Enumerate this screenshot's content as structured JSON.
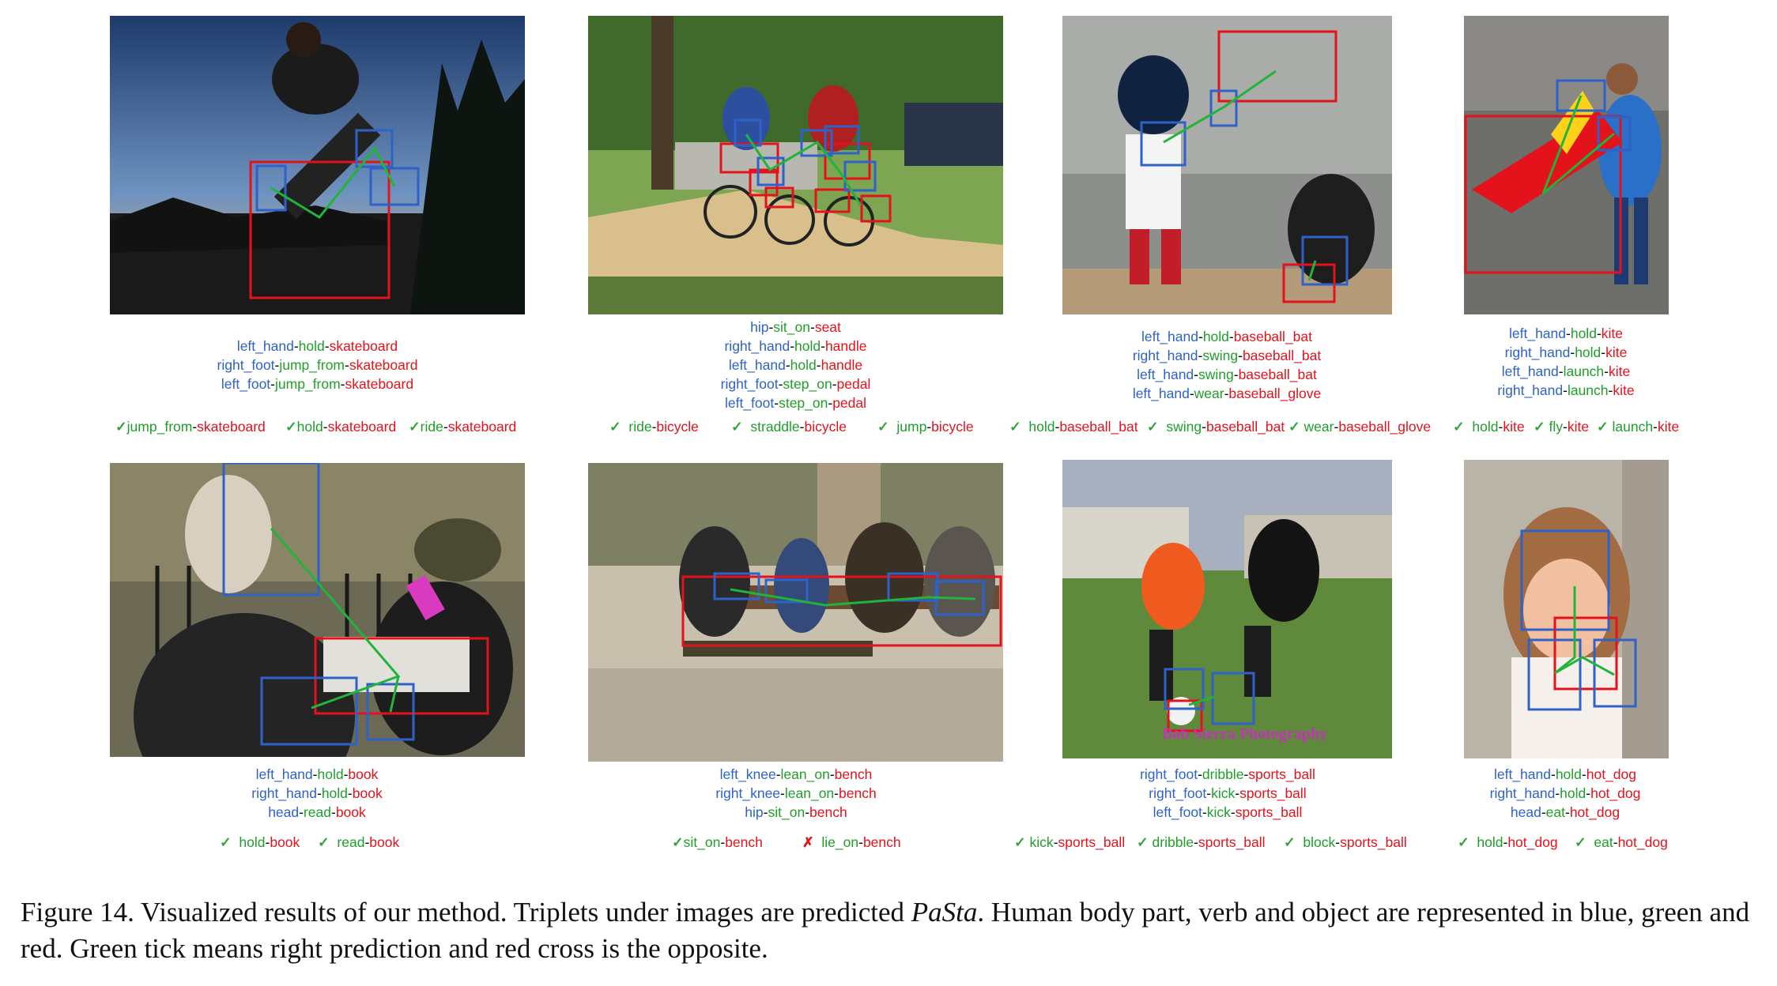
{
  "caption": {
    "label": "Figure 14.",
    "part1": "Visualized results of our method. Triplets under images are predicted",
    "pasta": "PaSta",
    "part2": ". Human body part, verb and object are represented in blue, green and red. Green tick means right prediction and red cross is the opposite."
  },
  "colors": {
    "part": "#2e62c9",
    "verb": "#1f9e2a",
    "object": "#e3121b",
    "tick": "#33a33a",
    "cross": "#e3121b"
  },
  "panels": [
    {
      "id": "p1",
      "triplets": [
        [
          "left_hand",
          "hold",
          "skateboard"
        ],
        [
          "right_foot",
          "jump_from",
          "skateboard"
        ],
        [
          "left_foot",
          "jump_from",
          "skateboard"
        ]
      ],
      "verbs": [
        {
          "mark": "✓",
          "verb": "jump_from",
          "obj": "skateboard"
        },
        {
          "mark": "✓",
          "verb": "hold",
          "obj": "skateboard"
        },
        {
          "mark": "✓",
          "verb": "ride",
          "obj": "skateboard"
        }
      ]
    },
    {
      "id": "p2",
      "triplets": [
        [
          "hip",
          "sit_on",
          "seat"
        ],
        [
          "right_hand",
          "hold",
          "handle"
        ],
        [
          "left_hand",
          "hold",
          "handle"
        ],
        [
          "right_foot",
          "step_on",
          "pedal"
        ],
        [
          "left_foot",
          "step_on",
          "pedal"
        ]
      ],
      "verbs": [
        {
          "mark": "✓",
          "verb": "ride",
          "obj": "bicycle"
        },
        {
          "mark": "✓",
          "verb": "straddle",
          "obj": "bicycle"
        },
        {
          "mark": "✓",
          "verb": "jump",
          "obj": "bicycle"
        }
      ]
    },
    {
      "id": "p3",
      "triplets": [
        [
          "left_hand",
          "hold",
          "baseball_bat"
        ],
        [
          "right_hand",
          "swing",
          "baseball_bat"
        ],
        [
          "left_hand",
          "swing",
          "baseball_bat"
        ],
        [
          "left_hand",
          "wear",
          "baseball_glove"
        ]
      ],
      "verbs": [
        {
          "mark": "✓",
          "verb": "hold",
          "obj": "baseball_bat"
        },
        {
          "mark": "✓",
          "verb": "swing",
          "obj": "baseball_bat"
        },
        {
          "mark": "✓",
          "verb": "wear",
          "obj": "baseball_glove"
        }
      ]
    },
    {
      "id": "p4",
      "triplets": [
        [
          "left_hand",
          "hold",
          "kite"
        ],
        [
          "right_hand",
          "hold",
          "kite"
        ],
        [
          "left_hand",
          "launch",
          "kite"
        ],
        [
          "right_hand",
          "launch",
          "kite"
        ]
      ],
      "verbs": [
        {
          "mark": "✓",
          "verb": "hold",
          "obj": "kite"
        },
        {
          "mark": "✓",
          "verb": "fly",
          "obj": "kite"
        },
        {
          "mark": "✓",
          "verb": "launch",
          "obj": "kite"
        }
      ]
    },
    {
      "id": "p5",
      "triplets": [
        [
          "left_hand",
          "hold",
          "book"
        ],
        [
          "right_hand",
          "hold",
          "book"
        ],
        [
          "head",
          "read",
          "book"
        ]
      ],
      "verbs": [
        {
          "mark": "✓",
          "verb": "hold",
          "obj": "book"
        },
        {
          "mark": "✓",
          "verb": "read",
          "obj": "book"
        }
      ]
    },
    {
      "id": "p6",
      "triplets": [
        [
          "left_knee",
          "lean_on",
          "bench"
        ],
        [
          "right_knee",
          "lean_on",
          "bench"
        ],
        [
          "hip",
          "sit_on",
          "bench"
        ]
      ],
      "verbs": [
        {
          "mark": "✓",
          "verb": "sit_on",
          "obj": "bench"
        },
        {
          "mark": "✗",
          "verb": "lie_on",
          "obj": "bench"
        }
      ]
    },
    {
      "id": "p7",
      "triplets": [
        [
          "right_foot",
          "dribble",
          "sports_ball"
        ],
        [
          "right_foot",
          "kick",
          "sports_ball"
        ],
        [
          "left_foot",
          "kick",
          "sports_ball"
        ]
      ],
      "verbs": [
        {
          "mark": "✓",
          "verb": "kick",
          "obj": "sports_ball"
        },
        {
          "mark": "✓",
          "verb": "dribble",
          "obj": "sports_ball"
        },
        {
          "mark": "✓",
          "verb": "block",
          "obj": "sports_ball"
        }
      ],
      "watermark": "Bob Sierra Photography"
    },
    {
      "id": "p8",
      "triplets": [
        [
          "left_hand",
          "hold",
          "hot_dog"
        ],
        [
          "right_hand",
          "hold",
          "hot_dog"
        ],
        [
          "head",
          "eat",
          "hot_dog"
        ]
      ],
      "verbs": [
        {
          "mark": "✓",
          "verb": "hold",
          "obj": "hot_dog"
        },
        {
          "mark": "✓",
          "verb": "eat",
          "obj": "hot_dog"
        }
      ]
    }
  ]
}
